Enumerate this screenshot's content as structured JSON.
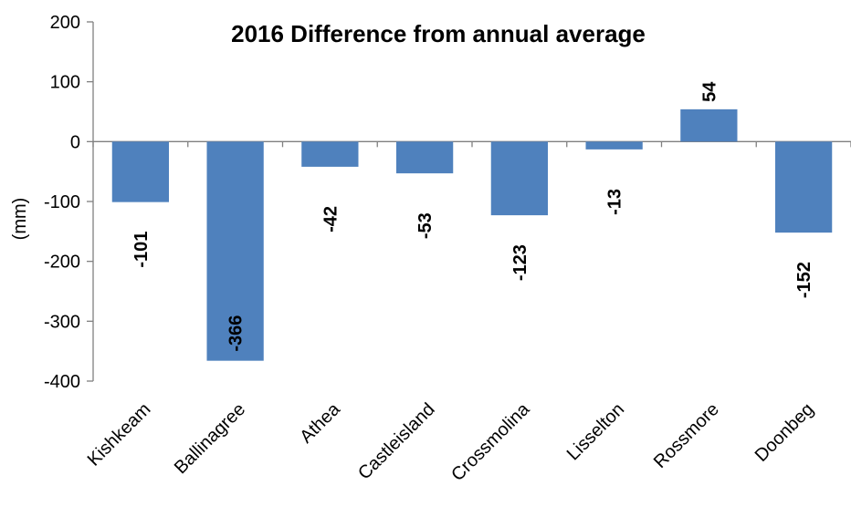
{
  "chart_data": {
    "type": "bar",
    "title": "2016 Difference from annual average",
    "xlabel": "",
    "ylabel": "(mm)",
    "categories": [
      "Kishkeam",
      "Ballinagree",
      "Athea",
      "Castleisland",
      "Crossmolina",
      "Lisselton",
      "Rossmore",
      "Doonbeg"
    ],
    "values": [
      -101,
      -366,
      -42,
      -53,
      -123,
      -13,
      54,
      -152
    ],
    "data_labels": [
      "-101",
      "-366",
      "-42",
      "-53",
      "-123",
      "-13",
      "54",
      "-152"
    ],
    "yticks": [
      "200",
      "100",
      "0",
      "-100",
      "-200",
      "-300",
      "-400"
    ],
    "ylim": [
      -400,
      200
    ],
    "grid": false,
    "legend": "none",
    "bar_color": "#4f81bd"
  }
}
